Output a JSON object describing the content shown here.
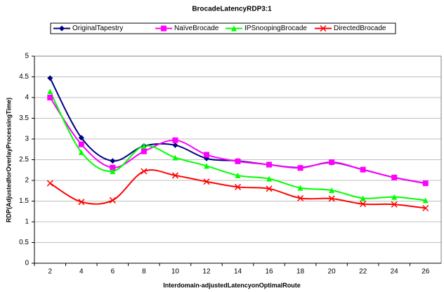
{
  "chart_data": {
    "type": "line",
    "title": "BrocadeLatencyRDP3:1",
    "x_label": "Interdomain-adjustedLatencyonOptimalRoute",
    "y_label": "RDP(AdjustedforOverlayProcessingTime)",
    "categories": [
      "2",
      "4",
      "6",
      "8",
      "10",
      "12",
      "14",
      "16",
      "18",
      "20",
      "22",
      "24",
      "26"
    ],
    "series": [
      {
        "name": "OriginalTapestry",
        "color": "#000080",
        "marker": "diamond",
        "values": [
          4.47,
          3.03,
          2.47,
          2.83,
          2.85,
          2.53,
          2.47,
          2.38,
          2.31,
          2.43,
          2.26,
          2.07,
          1.93
        ]
      },
      {
        "name": "NaïveBrocade",
        "color": "#ff00ff",
        "marker": "square",
        "values": [
          4.0,
          2.87,
          2.31,
          2.7,
          2.97,
          2.62,
          2.46,
          2.38,
          2.3,
          2.44,
          2.26,
          2.07,
          1.93
        ]
      },
      {
        "name": "IPSnoopingBrocade",
        "color": "#00ff00",
        "marker": "triangle",
        "values": [
          4.15,
          2.68,
          2.22,
          2.83,
          2.55,
          2.35,
          2.12,
          2.04,
          1.82,
          1.76,
          1.57,
          1.6,
          1.52
        ]
      },
      {
        "name": "DirectedBrocade",
        "color": "#ff0000",
        "marker": "x",
        "values": [
          1.93,
          1.48,
          1.52,
          2.22,
          2.12,
          1.97,
          1.84,
          1.8,
          1.57,
          1.56,
          1.43,
          1.42,
          1.33
        ]
      }
    ],
    "ylim": [
      0,
      5
    ],
    "yticks": [
      0,
      0.5,
      1,
      1.5,
      2,
      2.5,
      3,
      3.5,
      4,
      4.5,
      5
    ],
    "grid": true,
    "smooth": true,
    "legend": "top"
  }
}
